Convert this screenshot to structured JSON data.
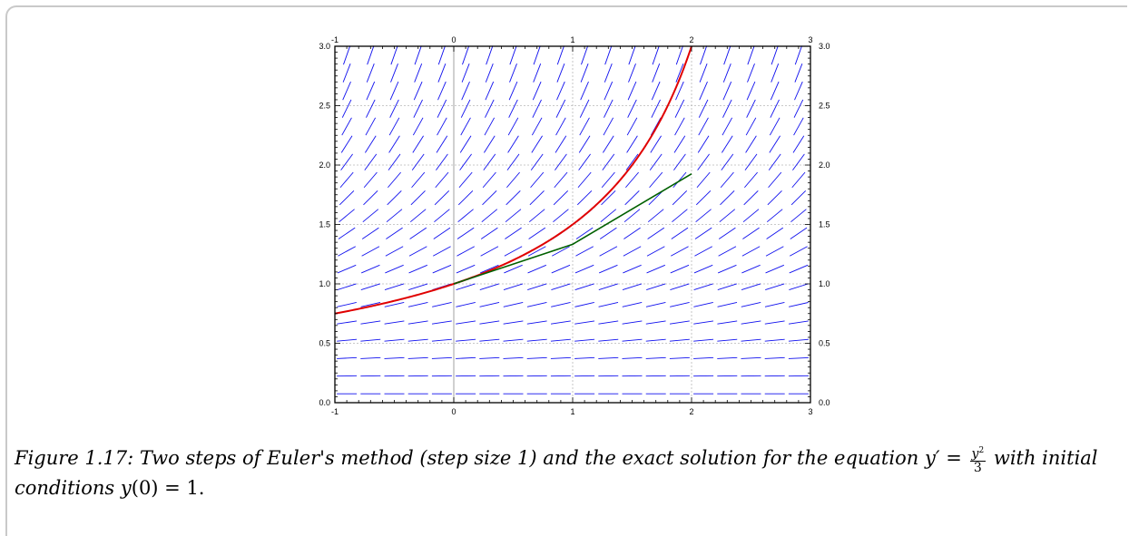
{
  "chart_data": {
    "type": "line",
    "title": "",
    "xlabel": "",
    "ylabel": "",
    "xlim": [
      -1,
      3
    ],
    "ylim": [
      0,
      3
    ],
    "x_ticks": [
      "-1",
      "0",
      "1",
      "2",
      "3"
    ],
    "y_ticks": [
      "0.0",
      "0.5",
      "1.0",
      "1.5",
      "2.0",
      "2.5",
      "3.0"
    ],
    "grid": true,
    "slope_field": {
      "equation": "y' = y^2/3",
      "nx": 20,
      "ny": 20
    },
    "series": [
      {
        "role": "exact_solution",
        "color": "#e00000",
        "x": [
          -1.0,
          -0.8,
          -0.6,
          -0.4,
          -0.2,
          0.0,
          0.2,
          0.4,
          0.6,
          0.8,
          1.0,
          1.2,
          1.4,
          1.6,
          1.8,
          2.0
        ],
        "y": [
          0.75,
          0.789,
          0.833,
          0.882,
          0.938,
          1.0,
          1.071,
          1.154,
          1.25,
          1.364,
          1.5,
          1.667,
          1.875,
          2.143,
          2.5,
          3.0
        ]
      },
      {
        "role": "euler_steps",
        "color": "#006000",
        "x": [
          0,
          1,
          2
        ],
        "y": [
          1.0,
          1.3333,
          1.9259
        ]
      }
    ]
  },
  "caption": {
    "lead": "Figure 1.17: Two steps of Euler's method (step size 1) and the exact solution for the equation ",
    "lhs": "y′ = ",
    "frac_num": "y",
    "frac_sup": "2",
    "frac_den": "3",
    "mid": " with initial conditions ",
    "cond_y": "y",
    "cond_rest": "(0) = 1."
  }
}
